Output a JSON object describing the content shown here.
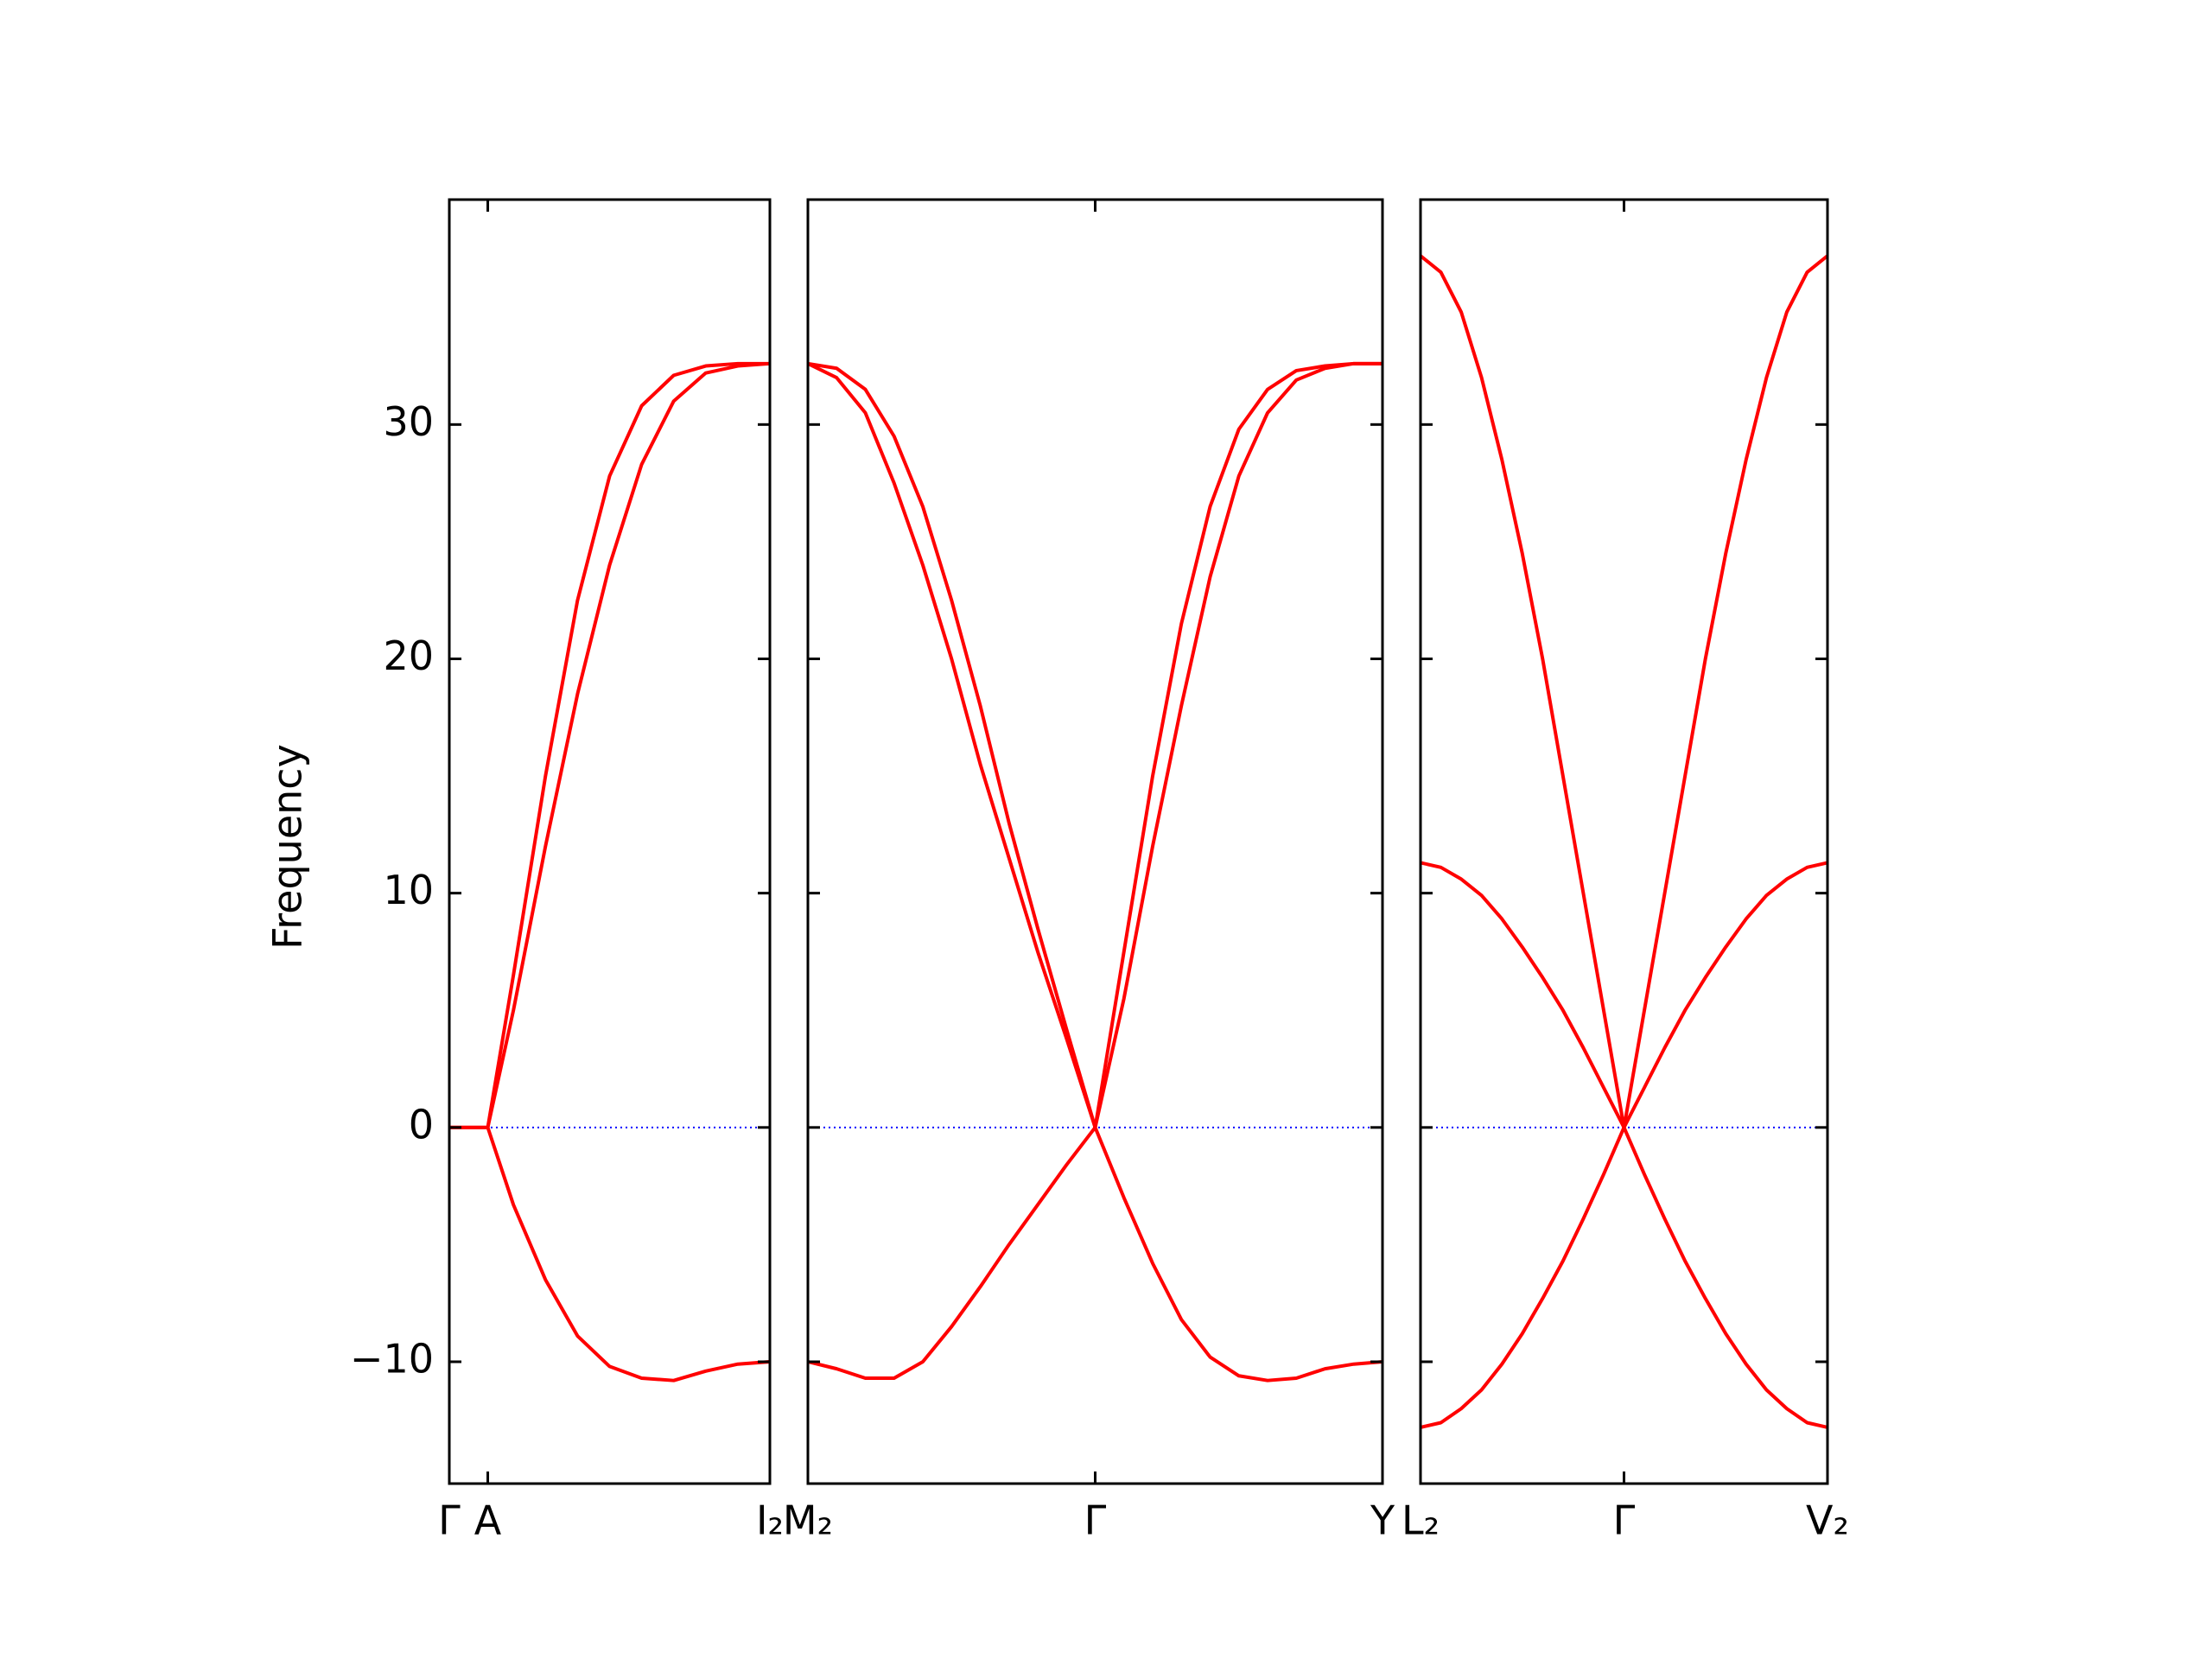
{
  "chart_data": [
    {
      "type": "line",
      "ylabel": "Frequency",
      "xlim": [
        0,
        1
      ],
      "xticks": [
        {
          "value": 0,
          "label": "Γ"
        },
        {
          "value": 0.12,
          "label": "A"
        },
        {
          "value": 1,
          "label": "I₂"
        }
      ],
      "ylim": [
        -15.2,
        39.6
      ],
      "yticks": [
        {
          "value": -10,
          "label": "−10"
        },
        0,
        10,
        20,
        30
      ],
      "reference_line": {
        "y": 0,
        "color": "#0000ff"
      },
      "x": [
        0,
        0.12,
        0.2,
        0.3,
        0.4,
        0.5,
        0.6,
        0.7,
        0.8,
        0.9,
        1.0
      ],
      "series": [
        {
          "color": "#ff0000",
          "values": [
            0,
            0,
            6.5,
            15,
            22.5,
            27.8,
            30.8,
            32.1,
            32.5,
            32.6,
            32.6
          ]
        },
        {
          "color": "#ff0000",
          "values": [
            0,
            0,
            5,
            12,
            18.5,
            24,
            28.3,
            31,
            32.2,
            32.5,
            32.6
          ]
        },
        {
          "color": "#ff0000",
          "values": [
            0,
            0,
            -3.3,
            -6.5,
            -8.9,
            -10.2,
            -10.7,
            -10.8,
            -10.4,
            -10.1,
            -10.0
          ]
        }
      ]
    },
    {
      "type": "line",
      "xlim": [
        0,
        2
      ],
      "xticks": [
        {
          "value": 0,
          "label": "M₂"
        },
        {
          "value": 1,
          "label": "Γ"
        },
        {
          "value": 2,
          "label": "Y"
        }
      ],
      "ylim": [
        -15.2,
        39.6
      ],
      "yticks": [
        -10,
        0,
        10,
        20,
        30
      ],
      "reference_line": {
        "y": 0,
        "color": "#0000ff"
      },
      "x": [
        0,
        0.1,
        0.2,
        0.3,
        0.4,
        0.5,
        0.6,
        0.7,
        0.8,
        0.9,
        1.0,
        1.1,
        1.2,
        1.3,
        1.4,
        1.5,
        1.6,
        1.7,
        1.8,
        1.9,
        2.0
      ],
      "series": [
        {
          "color": "#ff0000",
          "values": [
            32.6,
            32.4,
            31.5,
            29.5,
            26.5,
            22.5,
            18,
            13,
            8.5,
            4.2,
            0,
            7.5,
            15,
            21.5,
            26.5,
            29.8,
            31.5,
            32.3,
            32.5,
            32.6,
            32.6
          ]
        },
        {
          "color": "#ff0000",
          "values": [
            32.6,
            32,
            30.5,
            27.5,
            24,
            20,
            15.5,
            11.5,
            7.5,
            3.8,
            0,
            5.5,
            12,
            18,
            23.5,
            27.8,
            30.5,
            31.9,
            32.4,
            32.6,
            32.6
          ]
        },
        {
          "color": "#ff0000",
          "values": [
            -10,
            -10.3,
            -10.7,
            -10.7,
            -10,
            -8.5,
            -6.8,
            -5,
            -3.3,
            -1.6,
            0,
            -3,
            -5.8,
            -8.2,
            -9.8,
            -10.6,
            -10.8,
            -10.7,
            -10.3,
            -10.1,
            -10
          ]
        }
      ]
    },
    {
      "type": "line",
      "xlim": [
        0,
        2
      ],
      "xticks": [
        {
          "value": 0,
          "label": "L₂"
        },
        {
          "value": 1,
          "label": "Γ"
        },
        {
          "value": 2,
          "label": "V₂"
        }
      ],
      "ylim": [
        -15.2,
        39.6
      ],
      "yticks": [
        -10,
        0,
        10,
        20,
        30
      ],
      "reference_line": {
        "y": 0,
        "color": "#0000ff"
      },
      "x": [
        0,
        0.1,
        0.2,
        0.3,
        0.4,
        0.5,
        0.6,
        0.7,
        0.8,
        0.9,
        1.0,
        1.1,
        1.2,
        1.3,
        1.4,
        1.5,
        1.6,
        1.7,
        1.8,
        1.9,
        2.0
      ],
      "series": [
        {
          "color": "#ff0000",
          "values": [
            37.2,
            36.5,
            34.8,
            32,
            28.5,
            24.5,
            20,
            15,
            10,
            5,
            0,
            5,
            10,
            15,
            20,
            24.5,
            28.5,
            32,
            34.8,
            36.5,
            37.2
          ]
        },
        {
          "color": "#ff0000",
          "values": [
            11.3,
            11.1,
            10.6,
            9.9,
            8.9,
            7.7,
            6.4,
            5,
            3.4,
            1.7,
            0,
            1.7,
            3.4,
            5,
            6.4,
            7.7,
            8.9,
            9.9,
            10.6,
            11.1,
            11.3
          ]
        },
        {
          "color": "#ff0000",
          "values": [
            -12.8,
            -12.6,
            -12,
            -11.2,
            -10.1,
            -8.8,
            -7.3,
            -5.7,
            -3.9,
            -2,
            0,
            -2,
            -3.9,
            -5.7,
            -7.3,
            -8.8,
            -10.1,
            -11.2,
            -12,
            -12.6,
            -12.8
          ]
        }
      ]
    }
  ]
}
